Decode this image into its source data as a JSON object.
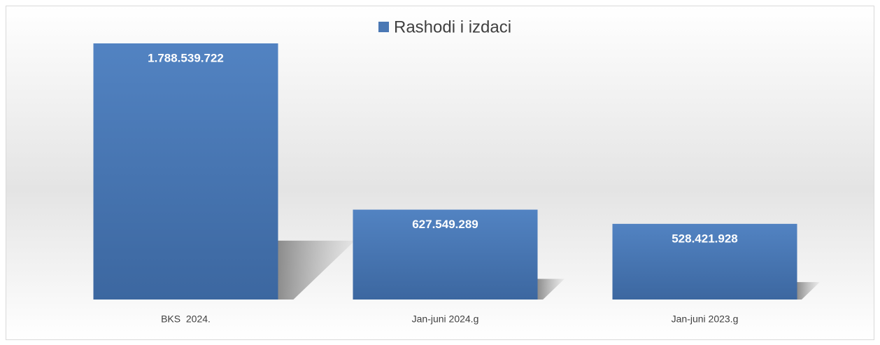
{
  "chart_data": {
    "type": "bar",
    "categories": [
      "BKS  2024.",
      "Jan-juni 2024.g",
      "Jan-juni 2023.g"
    ],
    "series": [
      {
        "name": "Rashodi i izdaci",
        "color": "#4a78b4",
        "values": [
          1788539722,
          627549289,
          528421928
        ],
        "value_labels": [
          "1.788.539.722",
          "627.549.289",
          "528.421.928"
        ]
      }
    ],
    "legend": "top"
  }
}
